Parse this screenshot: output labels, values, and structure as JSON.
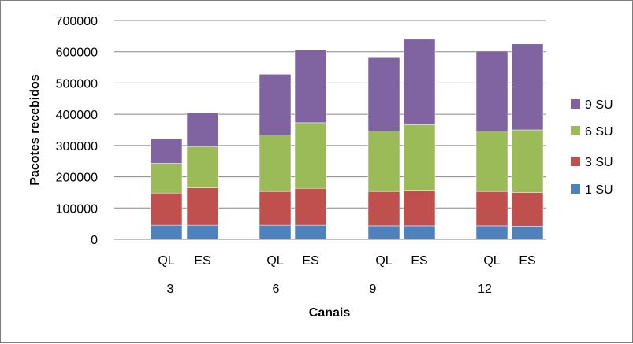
{
  "chart_data": {
    "type": "bar",
    "stacked": true,
    "title": "",
    "xlabel": "Canais",
    "ylabel": "Pacotes recebidos",
    "ylim": [
      0,
      700000
    ],
    "y_ticks": [
      "0",
      "100000",
      "200000",
      "300000",
      "400000",
      "500000",
      "600000",
      "700000"
    ],
    "grid": true,
    "legend_position": "right",
    "groups": [
      "3",
      "6",
      "9",
      "12"
    ],
    "sub_categories": [
      "QL",
      "ES"
    ],
    "categories": [
      "3 QL",
      "3 ES",
      "6 QL",
      "6 ES",
      "9 QL",
      "9 ES",
      "12 QL",
      "12 ES"
    ],
    "series": [
      {
        "name": "1 SU",
        "color": "#4f81bd",
        "values": [
          45000,
          45000,
          45000,
          45000,
          43000,
          43000,
          43000,
          42000
        ]
      },
      {
        "name": "3 SU",
        "color": "#c0504d",
        "values": [
          103000,
          120000,
          108000,
          118000,
          110000,
          112000,
          110000,
          108000
        ]
      },
      {
        "name": "6 SU",
        "color": "#9bbb59",
        "values": [
          95000,
          132000,
          180000,
          210000,
          193000,
          212000,
          193000,
          200000
        ]
      },
      {
        "name": "9 SU",
        "color": "#8064a2",
        "values": [
          80000,
          108000,
          195000,
          232000,
          235000,
          273000,
          256000,
          275000
        ]
      }
    ]
  }
}
